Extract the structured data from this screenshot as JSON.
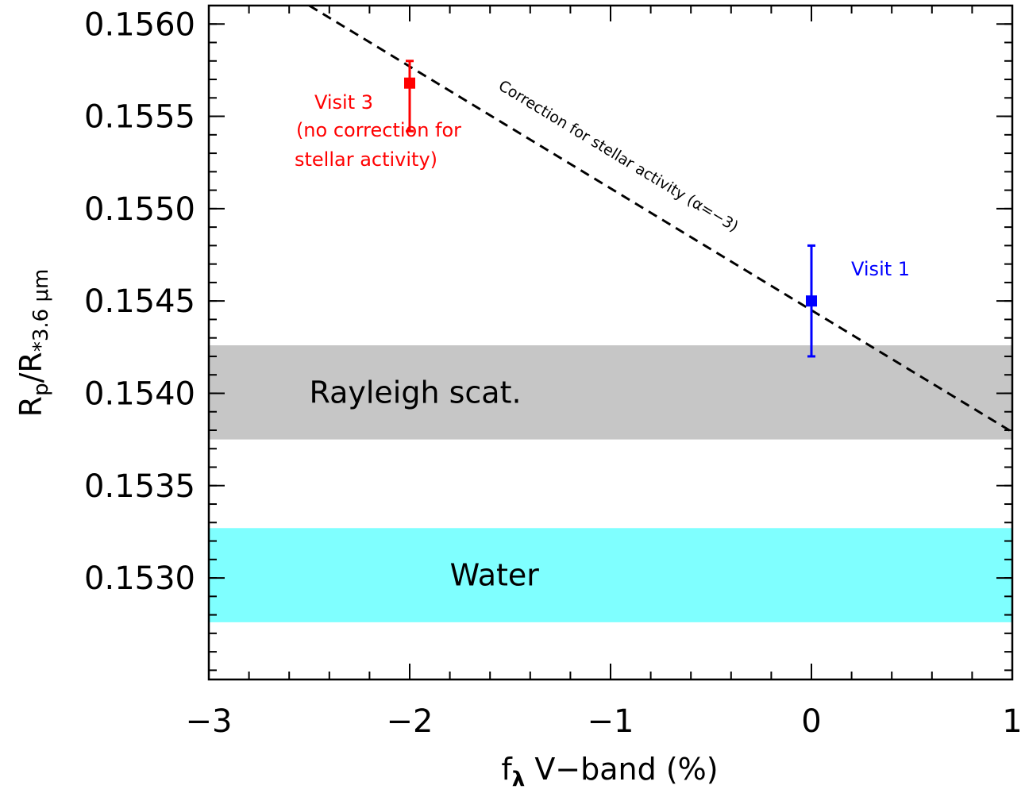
{
  "chart_data": {
    "type": "scatter",
    "xlabel": {
      "base": "f",
      "sub": "λ",
      "rest": " V−band (%)"
    },
    "ylabel": {
      "num": "R",
      "num_sub": "p",
      "den": "R",
      "den_sub": "*3.6 μm"
    },
    "xlim": [
      -3,
      1
    ],
    "ylim": [
      0.15245,
      0.1561
    ],
    "xticks": [
      -3,
      -2,
      -1,
      0,
      1
    ],
    "xtick_labels": [
      "−3",
      "−2",
      "−1",
      "0",
      "1"
    ],
    "yticks": [
      0.153,
      0.1535,
      0.154,
      0.1545,
      0.155,
      0.1555,
      0.156
    ],
    "ytick_labels": [
      "0.1530",
      "0.1535",
      "0.1540",
      "0.1545",
      "0.1550",
      "0.1555",
      "0.1560"
    ],
    "x_minor_step": 0.2,
    "y_minor_step": 0.0001,
    "bands": [
      {
        "label": "Rayleigh scat.",
        "ymin": 0.15375,
        "ymax": 0.15426,
        "color": "#c6c6c6",
        "label_x": -2.5
      },
      {
        "label": "Water",
        "ymin": 0.15276,
        "ymax": 0.15327,
        "color": "#7fffff",
        "label_x": -1.8
      }
    ],
    "correction_line": {
      "label": "Correction for stellar activity (α=−3)",
      "points": [
        [
          -2.5,
          0.1561
        ],
        [
          1,
          0.15379
        ]
      ],
      "style": "dashed",
      "color": "#000000"
    },
    "points": [
      {
        "name": "Visit 3",
        "x": -2,
        "y": 0.15568,
        "yerr_low": 0.00026,
        "yerr_high": 0.00012,
        "color": "#ff0000",
        "label_lines": [
          "Visit 3",
          "(no correction for",
          "stellar activity)"
        ]
      },
      {
        "name": "Visit 1",
        "x": 0,
        "y": 0.1545,
        "yerr_low": 0.0003,
        "yerr_high": 0.0003,
        "color": "#0000ff",
        "label_lines": [
          "Visit 1"
        ]
      }
    ]
  }
}
